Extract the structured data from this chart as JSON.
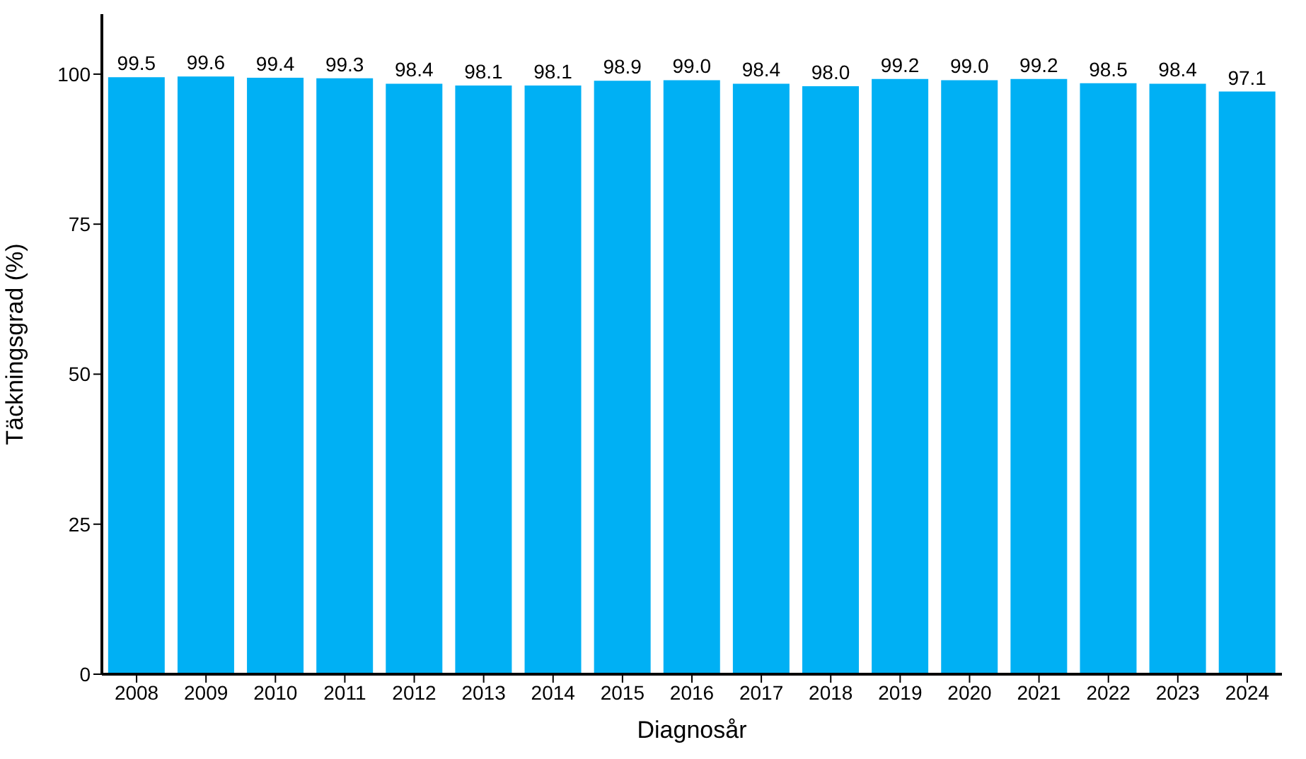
{
  "chart_data": {
    "type": "bar",
    "xlabel": "Diagnosår",
    "ylabel": "Täckningsgrad (%)",
    "categories": [
      "2008",
      "2009",
      "2010",
      "2011",
      "2012",
      "2013",
      "2014",
      "2015",
      "2016",
      "2017",
      "2018",
      "2019",
      "2020",
      "2021",
      "2022",
      "2023",
      "2024"
    ],
    "values": [
      99.5,
      99.6,
      99.4,
      99.3,
      98.4,
      98.1,
      98.1,
      98.9,
      99.0,
      98.4,
      98.0,
      99.2,
      99.0,
      99.2,
      98.5,
      98.4,
      97.1
    ],
    "value_labels": [
      "99.5",
      "99.6",
      "99.4",
      "99.3",
      "98.4",
      "98.1",
      "98.1",
      "98.9",
      "99.0",
      "98.4",
      "98.0",
      "99.2",
      "99.0",
      "99.2",
      "98.5",
      "98.4",
      "97.1"
    ],
    "color": "#00b0f4",
    "ylim": [
      0,
      110
    ],
    "yticks": [
      0,
      25,
      50,
      75,
      100
    ],
    "grid": false,
    "legend": false
  }
}
